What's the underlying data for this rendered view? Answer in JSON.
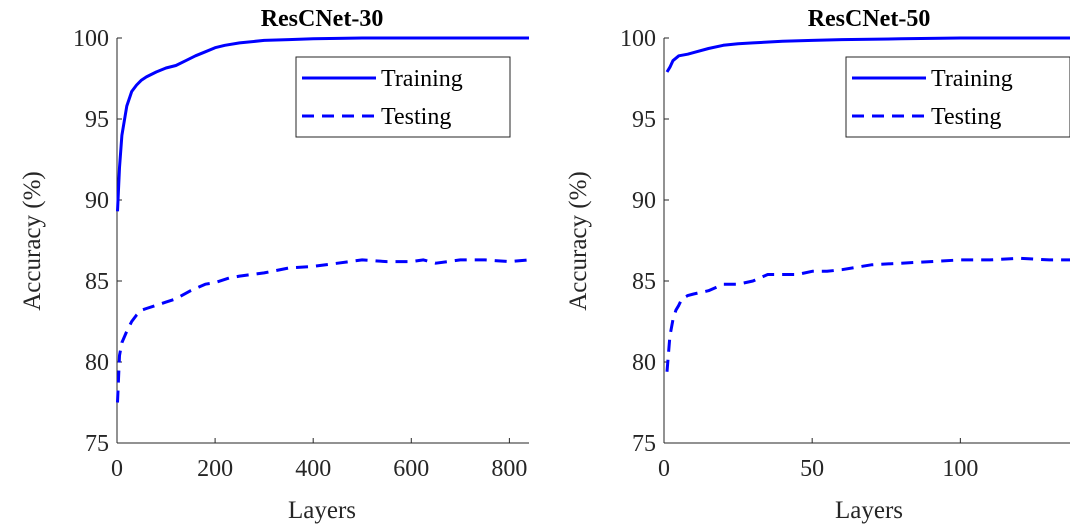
{
  "chart_data": [
    {
      "type": "line",
      "title": "ResCNet-30",
      "xlabel": "Layers",
      "ylabel": "Accuracy (%)",
      "xlim": [
        0,
        840
      ],
      "ylim": [
        75,
        100
      ],
      "xticks": [
        0,
        200,
        400,
        600,
        800
      ],
      "yticks": [
        75,
        80,
        85,
        90,
        95,
        100
      ],
      "grid": false,
      "legend": "top-right",
      "series": [
        {
          "name": "Training",
          "style": "solid",
          "color": "#0000ff",
          "x": [
            1,
            5,
            10,
            20,
            30,
            40,
            50,
            60,
            80,
            100,
            120,
            140,
            160,
            180,
            200,
            220,
            250,
            300,
            350,
            400,
            500,
            600,
            700,
            800,
            840
          ],
          "y": [
            89.3,
            92.0,
            94.0,
            95.8,
            96.7,
            97.1,
            97.4,
            97.6,
            97.9,
            98.15,
            98.3,
            98.6,
            98.9,
            99.15,
            99.4,
            99.55,
            99.7,
            99.85,
            99.9,
            99.95,
            100,
            100,
            100,
            100,
            100
          ]
        },
        {
          "name": "Testing",
          "style": "dashed",
          "color": "#0000ff",
          "x": [
            1,
            5,
            10,
            20,
            30,
            40,
            50,
            60,
            80,
            100,
            120,
            150,
            180,
            200,
            230,
            250,
            300,
            350,
            400,
            450,
            500,
            550,
            600,
            625,
            650,
            700,
            750,
            800,
            840
          ],
          "y": [
            77.5,
            80.4,
            81.2,
            81.9,
            82.5,
            82.9,
            83.2,
            83.3,
            83.5,
            83.7,
            83.9,
            84.4,
            84.8,
            84.9,
            85.2,
            85.3,
            85.5,
            85.8,
            85.9,
            86.1,
            86.3,
            86.2,
            86.2,
            86.3,
            86.1,
            86.3,
            86.3,
            86.2,
            86.3
          ]
        }
      ]
    },
    {
      "type": "line",
      "title": "ResCNet-50",
      "xlabel": "Layers",
      "ylabel": "Accuracy (%)",
      "xlim": [
        0,
        137
      ],
      "ylim": [
        75,
        100
      ],
      "xticks": [
        0,
        50,
        100
      ],
      "yticks": [
        75,
        80,
        85,
        90,
        95,
        100
      ],
      "grid": false,
      "legend": "top-right",
      "series": [
        {
          "name": "Training",
          "style": "solid",
          "color": "#0000ff",
          "x": [
            1,
            2,
            3,
            5,
            8,
            10,
            15,
            20,
            25,
            30,
            40,
            50,
            60,
            80,
            100,
            120,
            137
          ],
          "y": [
            97.9,
            98.2,
            98.6,
            98.9,
            99.0,
            99.1,
            99.35,
            99.55,
            99.65,
            99.7,
            99.8,
            99.85,
            99.9,
            99.95,
            100,
            100,
            100
          ],
          "note_omit": true
        },
        {
          "name": "Testing",
          "style": "dashed",
          "color": "#0000ff",
          "x": [
            1,
            2,
            3,
            4,
            5,
            6,
            8,
            10,
            15,
            20,
            25,
            30,
            35,
            40,
            45,
            50,
            55,
            60,
            70,
            80,
            90,
            100,
            110,
            120,
            130,
            137
          ],
          "y": [
            79.4,
            81.6,
            82.6,
            83.2,
            83.5,
            83.9,
            84.1,
            84.2,
            84.4,
            84.8,
            84.8,
            85.0,
            85.4,
            85.4,
            85.4,
            85.6,
            85.6,
            85.7,
            86.0,
            86.1,
            86.2,
            86.3,
            86.3,
            86.4,
            86.3,
            86.3
          ]
        }
      ]
    }
  ]
}
